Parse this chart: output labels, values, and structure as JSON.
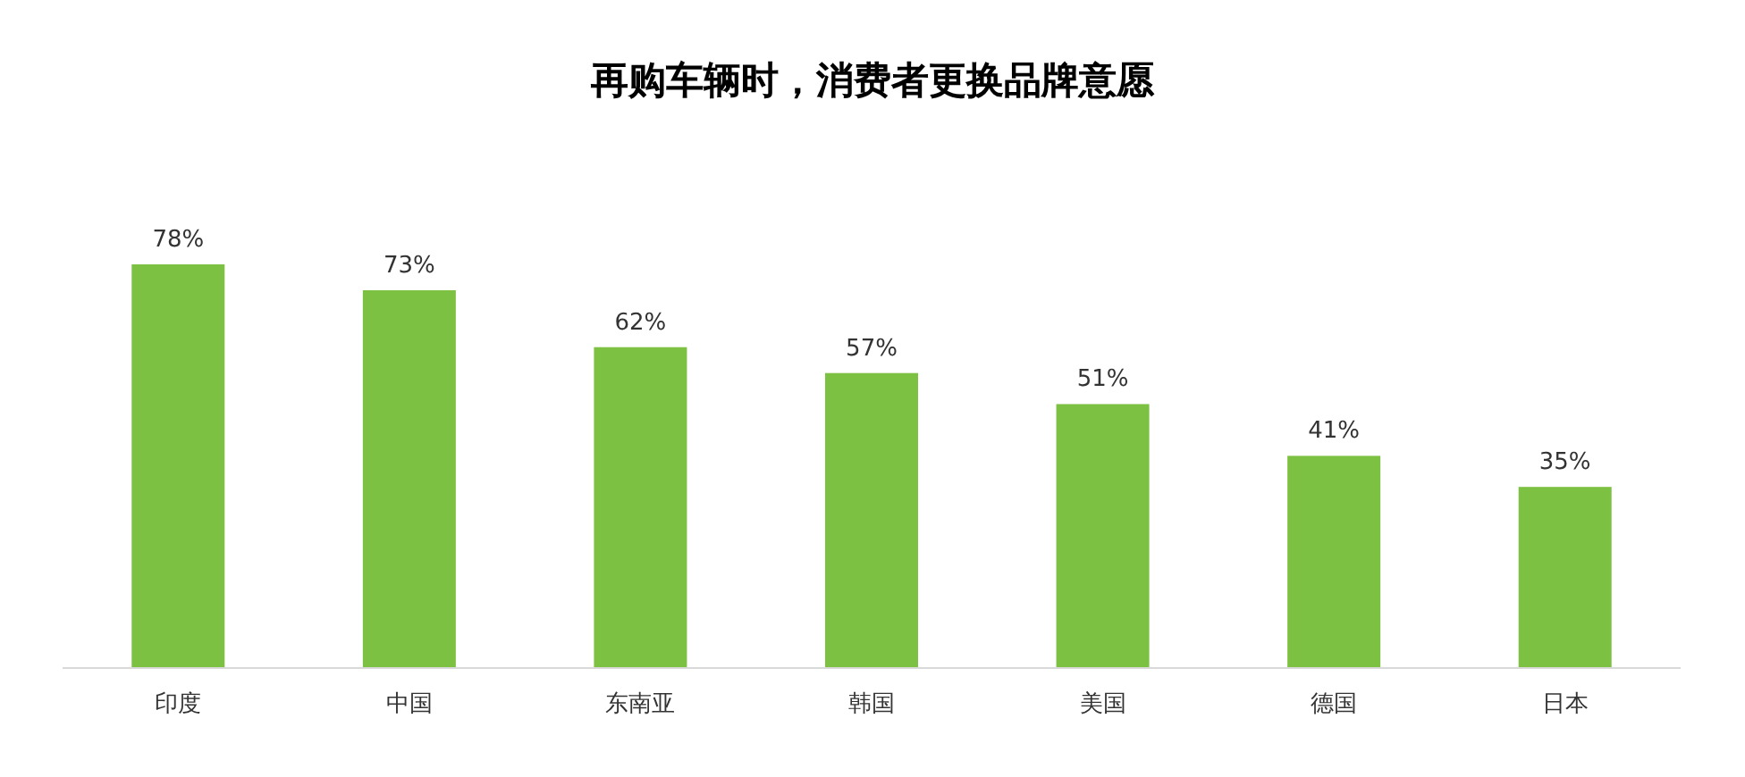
{
  "chart_data": {
    "type": "bar",
    "title": "再购车辆时，消费者更换品牌意愿",
    "categories": [
      "印度",
      "中国",
      "东南亚",
      "韩国",
      "美国",
      "德国",
      "日本"
    ],
    "values": [
      78,
      73,
      62,
      57,
      51,
      41,
      35
    ],
    "value_labels": [
      "78%",
      "73%",
      "62%",
      "57%",
      "51%",
      "41%",
      "35%"
    ],
    "color": "#7dc142"
  }
}
